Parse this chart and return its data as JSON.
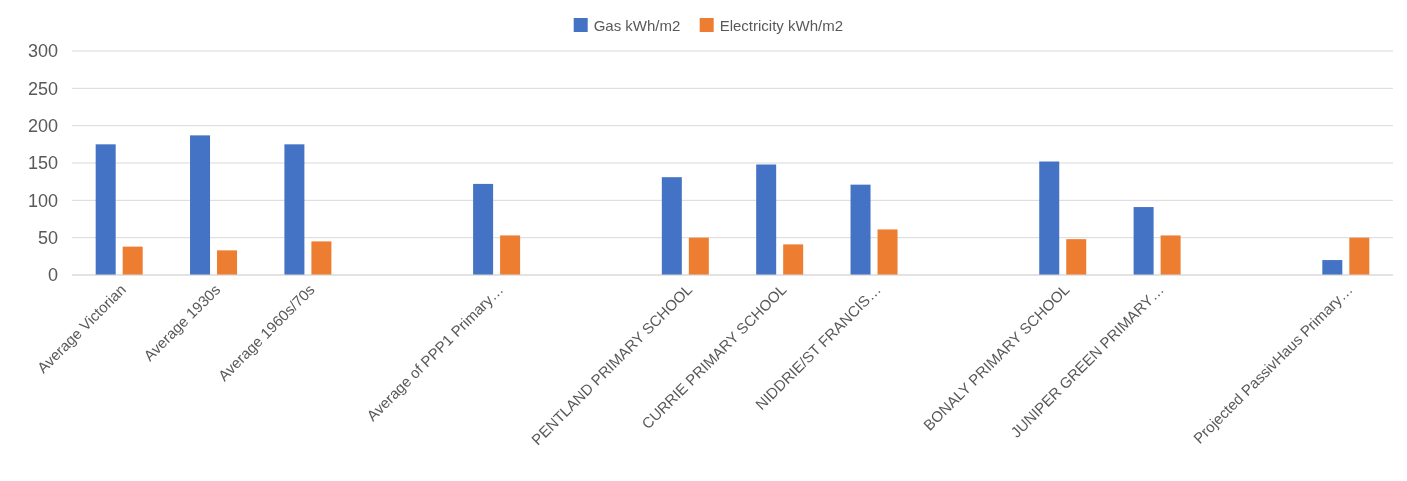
{
  "chart_data": {
    "type": "bar",
    "categories": [
      "Average Victorian",
      "Average 1930s",
      "Average 1960s/70s",
      null,
      "Average of PPP1 Primary…",
      null,
      "PENTLAND PRIMARY SCHOOL",
      "CURRIE PRIMARY SCHOOL",
      "NIDDRIE/ST FRANCIS…",
      null,
      "BONALY PRIMARY SCHOOL",
      "JUNIPER GREEN PRIMARY…",
      null,
      "Projected PassivHaus Primary…"
    ],
    "series": [
      {
        "name": "Gas kWh/m2",
        "color": "#4472c4",
        "values": [
          175,
          187,
          175,
          null,
          122,
          null,
          131,
          148,
          121,
          null,
          152,
          91,
          null,
          20
        ]
      },
      {
        "name": "Electricity kWh/m2",
        "color": "#ed7d31",
        "values": [
          38,
          33,
          45,
          null,
          53,
          null,
          50,
          41,
          61,
          null,
          48,
          53,
          null,
          50
        ]
      }
    ],
    "ylim": [
      0,
      300
    ],
    "yticks": [
      0,
      50,
      100,
      150,
      200,
      250,
      300
    ],
    "grid": "y",
    "legend": "top"
  }
}
